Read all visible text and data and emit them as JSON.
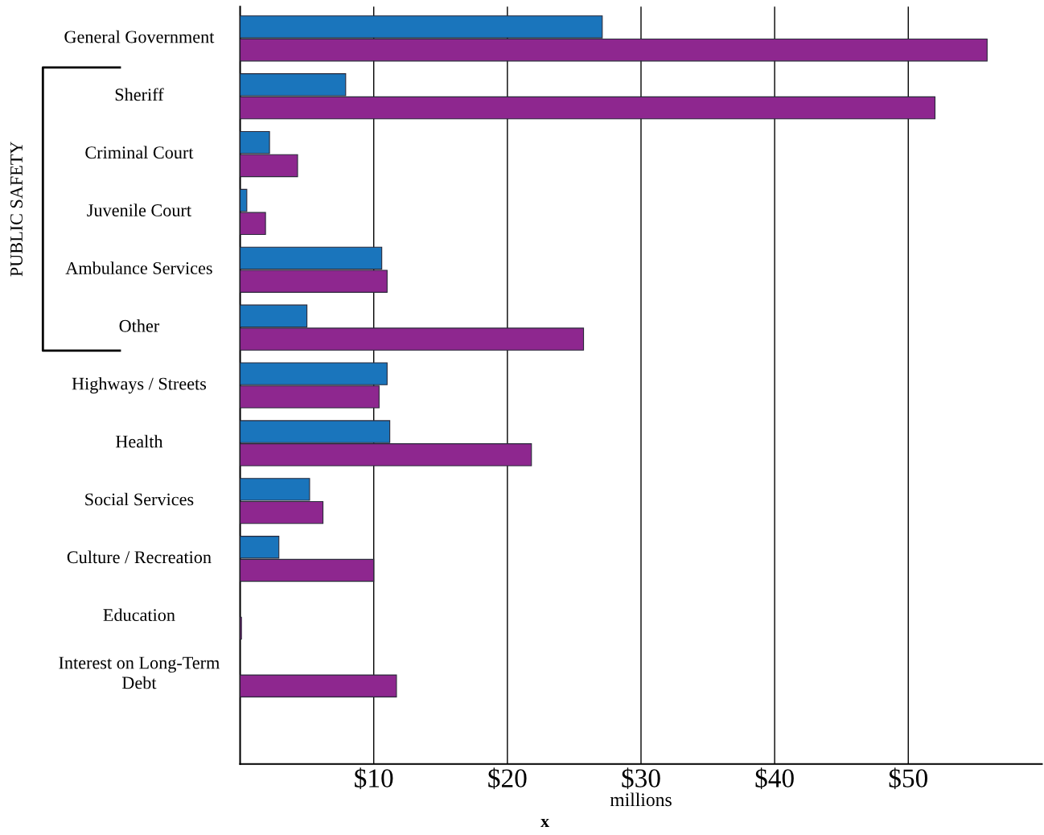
{
  "chart_data": {
    "type": "bar",
    "orientation": "horizontal",
    "xlabel": "millions",
    "categories": [
      "General Government",
      "Sheriff",
      "Criminal Court",
      "Juvenile Court",
      "Ambulance Services",
      "Other",
      "Highways / Streets",
      "Health",
      "Social Services",
      "Culture / Recreation",
      "Education",
      "Interest on Long-Term\nDebt"
    ],
    "series": [
      {
        "color": "#1a75bc",
        "values": [
          27.1,
          7.9,
          2.2,
          0.5,
          10.6,
          5.0,
          11.0,
          11.2,
          5.2,
          2.9,
          null,
          null
        ]
      },
      {
        "color": "#8e278f",
        "values": [
          55.9,
          52.0,
          4.3,
          1.9,
          11.0,
          25.7,
          10.4,
          21.8,
          6.2,
          10.0,
          0.1,
          11.7
        ]
      }
    ],
    "xlim": [
      0,
      60
    ],
    "xticks": [
      {
        "value": 10,
        "label": "$10"
      },
      {
        "value": 20,
        "label": "$20"
      },
      {
        "value": 30,
        "label": "$30"
      },
      {
        "value": 40,
        "label": "$40"
      },
      {
        "value": 50,
        "label": "$50"
      }
    ],
    "grid": "x",
    "legend": false,
    "annotations": [
      "x",
      "PUBLIC SAFETY"
    ]
  }
}
